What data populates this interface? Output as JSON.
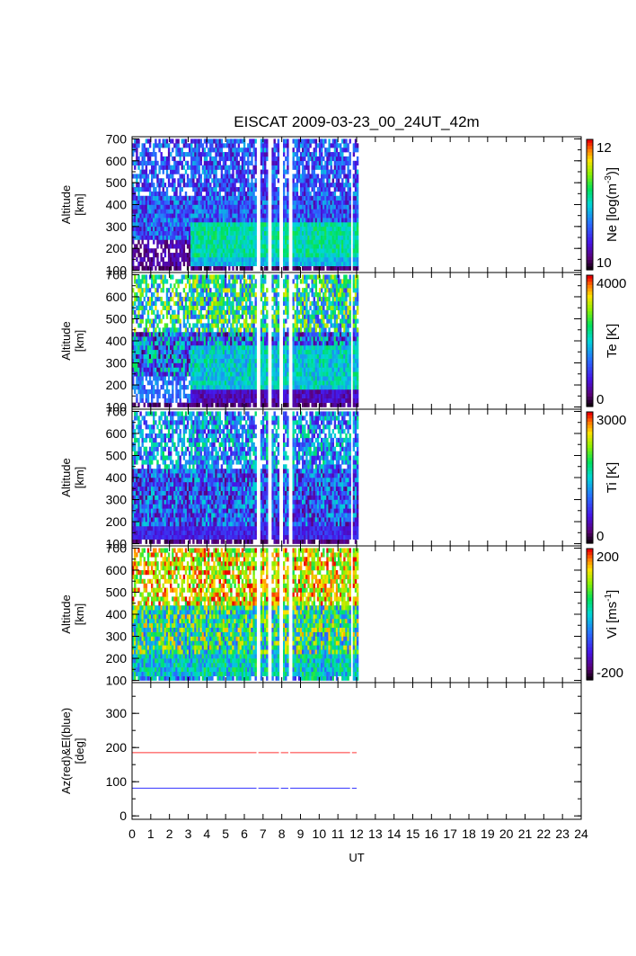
{
  "chart_data": {
    "type": "heatmap",
    "title": "EISCAT 2009-03-23_00_24UT_42m",
    "xlabel": "UT",
    "xlim": [
      0,
      24
    ],
    "x_ticks": [
      "0",
      "1",
      "2",
      "3",
      "4",
      "5",
      "6",
      "7",
      "8",
      "9",
      "10",
      "11",
      "12",
      "13",
      "14",
      "15",
      "16",
      "17",
      "18",
      "19",
      "20",
      "21",
      "22",
      "23",
      "24"
    ],
    "data_range_ut": [
      0,
      12
    ],
    "data_gaps_ut": [
      6.7,
      7.3,
      7.9,
      8.4,
      11.7
    ],
    "panels": [
      {
        "name": "ne",
        "ylabel": [
          "Altitude",
          "[km]"
        ],
        "ylim": [
          90,
          710
        ],
        "y_ticks": [
          "100",
          "200",
          "300",
          "400",
          "500",
          "600",
          "700"
        ],
        "colorbar": {
          "label": "Ne [log(m",
          "label_sup": "-3",
          "label_end": ")]",
          "min_label": "10",
          "max_label": "12",
          "min": 10,
          "max": 12
        }
      },
      {
        "name": "te",
        "ylabel": [
          "Altitude",
          "[km]"
        ],
        "ylim": [
          90,
          710
        ],
        "y_ticks": [
          "100",
          "200",
          "300",
          "400",
          "500",
          "600",
          "700"
        ],
        "colorbar": {
          "label": "Te [K]",
          "min_label": "0",
          "max_label": "4000",
          "min": 0,
          "max": 4000
        }
      },
      {
        "name": "ti",
        "ylabel": [
          "Altitude",
          "[km]"
        ],
        "ylim": [
          90,
          710
        ],
        "y_ticks": [
          "100",
          "200",
          "300",
          "400",
          "500",
          "600",
          "700"
        ],
        "colorbar": {
          "label": "Ti [K]",
          "min_label": "0",
          "max_label": "3000",
          "min": 0,
          "max": 3000
        }
      },
      {
        "name": "vi",
        "ylabel": [
          "Altitude",
          "[km]"
        ],
        "ylim": [
          90,
          710
        ],
        "y_ticks": [
          "100",
          "200",
          "300",
          "400",
          "500",
          "600",
          "700"
        ],
        "colorbar": {
          "label": "Vi [ms",
          "label_sup": "-1",
          "label_end": "]",
          "min_label": "-200",
          "max_label": "200",
          "min": -200,
          "max": 200
        }
      }
    ],
    "pointing_panel": {
      "ylabel": [
        "Az(red)&El(blue)",
        "[deg]"
      ],
      "ylim": [
        -10,
        390
      ],
      "y_ticks": [
        "0",
        "100",
        "200",
        "300"
      ],
      "series": [
        {
          "name": "Az",
          "color": "#ff3333",
          "value": 185,
          "x_range": [
            0,
            12
          ]
        },
        {
          "name": "El",
          "color": "#3333ff",
          "value": 81,
          "x_range": [
            0,
            12
          ]
        }
      ]
    }
  }
}
